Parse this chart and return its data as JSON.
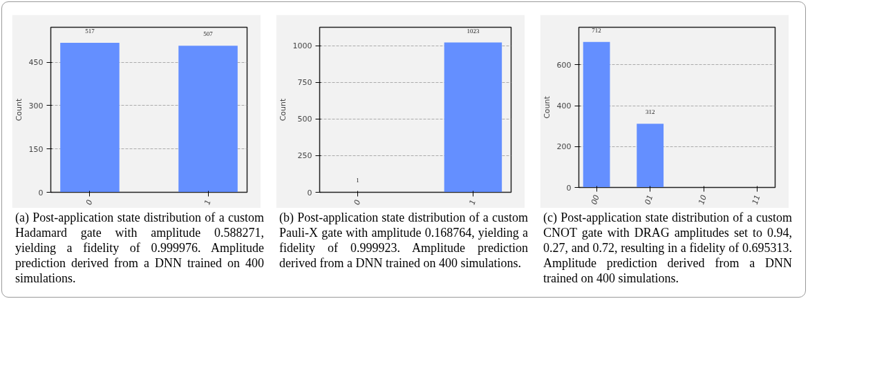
{
  "chart_data": [
    {
      "type": "bar",
      "categories": [
        "0",
        "1"
      ],
      "values": [
        517,
        507
      ],
      "color": "#648fff",
      "ylabel": "Count",
      "ylim": [
        0,
        571
      ],
      "yticks": [
        0,
        150,
        300,
        450
      ],
      "grid": "y",
      "data_labels": true,
      "annotations": [
        "(a) Post-application state distribution of a custom Hadamard gate with amplitude 0.588271, yielding a fidelity of 0.999976. Amplitude prediction derived from a DNN trained on 400 simulations."
      ]
    },
    {
      "type": "bar",
      "categories": [
        "0",
        "1"
      ],
      "values": [
        1,
        1023
      ],
      "color": "#648fff",
      "ylabel": "Count",
      "ylim": [
        0,
        1127
      ],
      "yticks": [
        0,
        250,
        500,
        750,
        1000
      ],
      "grid": "y",
      "data_labels": true,
      "annotations": [
        "(b) Post-application state distribution of a custom Pauli-X gate with amplitude 0.168764, yielding a fidelity of 0.999923. Amplitude prediction derived from a DNN trained on 400 simulations."
      ]
    },
    {
      "type": "bar",
      "categories": [
        "00",
        "01",
        "10",
        "11"
      ],
      "values": [
        712,
        312,
        0,
        0
      ],
      "value_labels": [
        "712",
        "312",
        null,
        null
      ],
      "color": "#648fff",
      "ylabel": "Count",
      "ylim": [
        0,
        784
      ],
      "yticks": [
        0,
        200,
        400,
        600
      ],
      "grid": "y",
      "annotations": [
        "(c) Post-application state distribution of a custom CNOT gate with DRAG amplitudes set to 0.94, 0.27, and 0.72, resulting in a fidelity of 0.695313. Amplitude prediction derived from a DNN trained on 400 simulations."
      ]
    }
  ]
}
